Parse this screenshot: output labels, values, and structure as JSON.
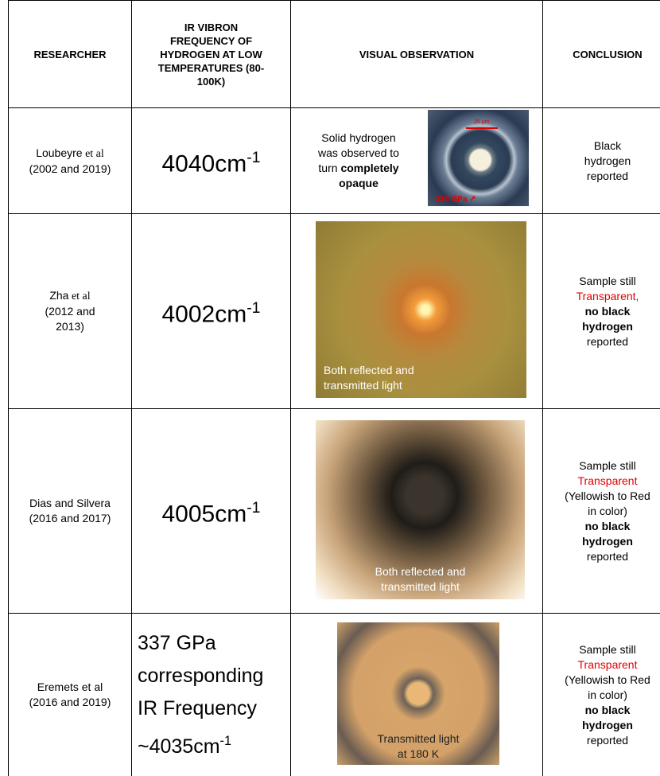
{
  "table": {
    "headers": [
      "RESEARCHER",
      "IR VIBRON FREQUENCY OF HYDROGEN AT LOW TEMPERATURES (80-100K)",
      "VISUAL OBSERVATION",
      "CONCLUSION"
    ],
    "rows": [
      {
        "researcher": [
          [
            {
              "text": "Loubeyre"
            },
            {
              "text": " et al",
              "style": "serif"
            }
          ],
          [
            {
              "text": "(2002 and 2019)"
            }
          ]
        ],
        "frequency": [
          [
            {
              "text": "4040cm"
            },
            {
              "text": "-1",
              "style": "sup"
            }
          ]
        ],
        "observation": [
          [
            {
              "text": "Solid hydrogen"
            }
          ],
          [
            {
              "text": "was observed to"
            }
          ],
          [
            {
              "text": "turn "
            },
            {
              "text": "completely",
              "style": "bold"
            }
          ],
          [
            {
              "text": "opaque",
              "style": "bold"
            }
          ]
        ],
        "image_labels": [
          "25 µm",
          "335 GPa ↗"
        ],
        "conclusion": [
          [
            {
              "text": "Black"
            }
          ],
          [
            {
              "text": "hydrogen"
            }
          ],
          [
            {
              "text": "reported"
            }
          ]
        ]
      },
      {
        "researcher": [
          [
            {
              "text": "Zha"
            },
            {
              "text": " et al",
              "style": "serif"
            }
          ],
          [
            {
              "text": "(2012 and"
            }
          ],
          [
            {
              "text": "2013)"
            }
          ]
        ],
        "frequency": [
          [
            {
              "text": "4002cm"
            },
            {
              "text": "-1",
              "style": "sup"
            }
          ]
        ],
        "caption": [
          "Both reflected and",
          "transmitted light"
        ],
        "conclusion": [
          [
            {
              "text": "Sample still"
            }
          ],
          [
            {
              "text": "Transparent,",
              "style": "red"
            }
          ],
          [
            {
              "text": "no black",
              "style": "bold"
            }
          ],
          [
            {
              "text": "hydrogen",
              "style": "bold"
            }
          ],
          [
            {
              "text": "reported"
            }
          ]
        ]
      },
      {
        "researcher": [
          [
            {
              "text": "Dias and Silvera"
            }
          ],
          [
            {
              "text": "(2016 and 2017)"
            }
          ]
        ],
        "frequency": [
          [
            {
              "text": "4005cm"
            },
            {
              "text": "-1",
              "style": "sup"
            }
          ]
        ],
        "caption": [
          "Both reflected and",
          "transmitted light"
        ],
        "conclusion": [
          [
            {
              "text": "Sample still"
            }
          ],
          [
            {
              "text": "Transparent",
              "style": "red"
            }
          ],
          [
            {
              "text": "(Yellowish to Red"
            }
          ],
          [
            {
              "text": "in color)"
            }
          ],
          [
            {
              "text": "no black",
              "style": "bold"
            }
          ],
          [
            {
              "text": "hydrogen",
              "style": "bold"
            }
          ],
          [
            {
              "text": "reported"
            }
          ]
        ]
      },
      {
        "researcher": [
          [
            {
              "text": "Eremets et al"
            }
          ],
          [
            {
              "text": "(2016 and 2019)"
            }
          ]
        ],
        "frequency": [
          [
            {
              "text": "337 GPa"
            }
          ],
          [
            {
              "text": "corresponding"
            }
          ],
          [
            {
              "text": "IR Frequency"
            }
          ],
          [
            {
              "text": "~4035cm"
            },
            {
              "text": "-1",
              "style": "sup"
            }
          ]
        ],
        "caption": [
          "Transmitted light",
          "at 180 K"
        ],
        "conclusion": [
          [
            {
              "text": "Sample still"
            }
          ],
          [
            {
              "text": "Transparent",
              "style": "red"
            }
          ],
          [
            {
              "text": "(Yellowish to Red"
            }
          ],
          [
            {
              "text": "in color)"
            }
          ],
          [
            {
              "text": "no black",
              "style": "bold"
            }
          ],
          [
            {
              "text": "hydrogen",
              "style": "bold"
            }
          ],
          [
            {
              "text": "reported"
            }
          ]
        ]
      }
    ]
  }
}
